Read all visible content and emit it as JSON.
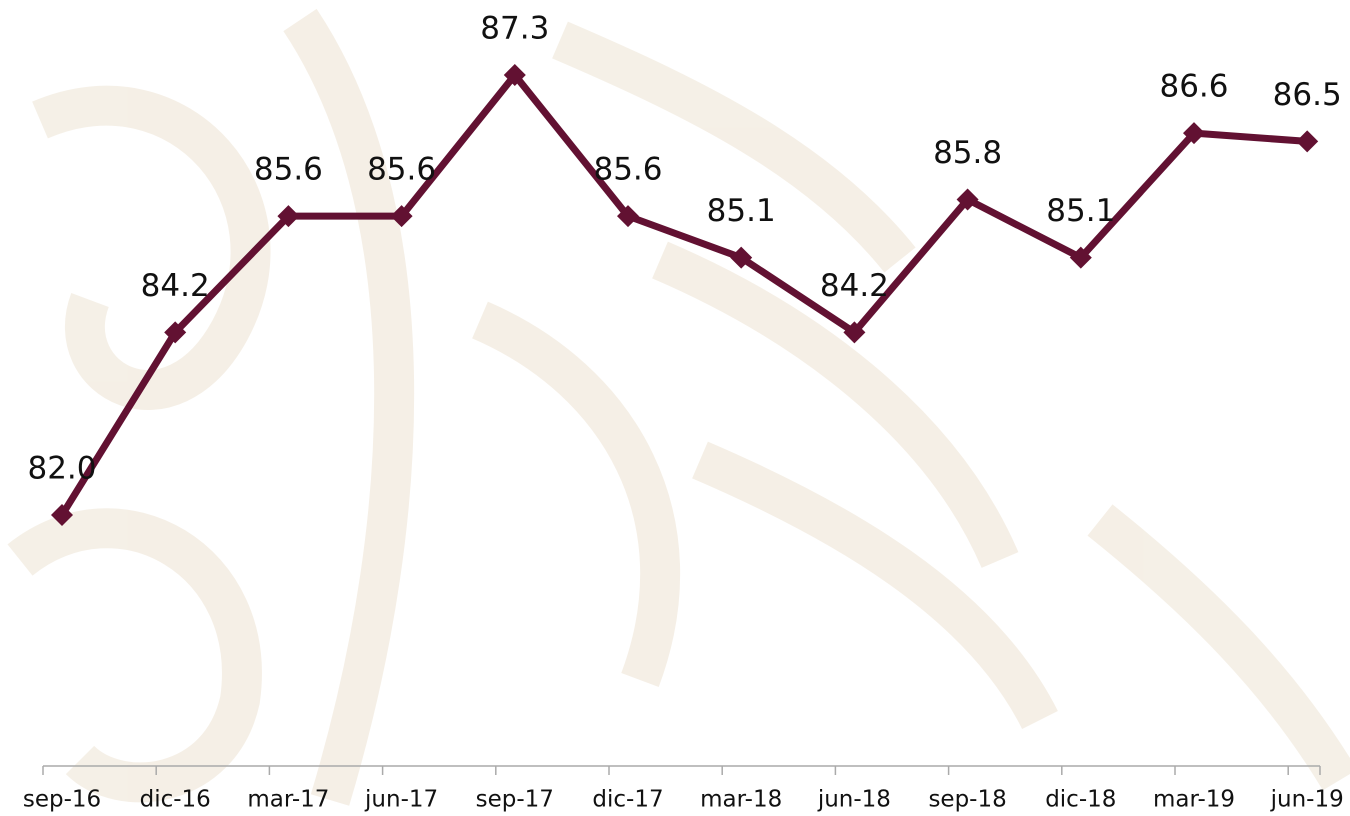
{
  "chart_data": {
    "type": "line",
    "categories": [
      "sep-16",
      "dic-16",
      "mar-17",
      "jun-17",
      "sep-17",
      "dic-17",
      "mar-18",
      "jun-18",
      "sep-18",
      "dic-18",
      "mar-19",
      "jun-19"
    ],
    "series": [
      {
        "color": "#621132",
        "values": [
          82.0,
          84.2,
          85.6,
          85.6,
          87.3,
          85.6,
          85.1,
          84.2,
          85.8,
          85.1,
          86.6,
          86.5
        ],
        "value_labels": [
          "82.0",
          "84.2",
          "85.6",
          "85.6",
          "87.3",
          "85.6",
          "85.1",
          "84.2",
          "85.8",
          "85.1",
          "86.6",
          "86.5"
        ]
      }
    ]
  }
}
